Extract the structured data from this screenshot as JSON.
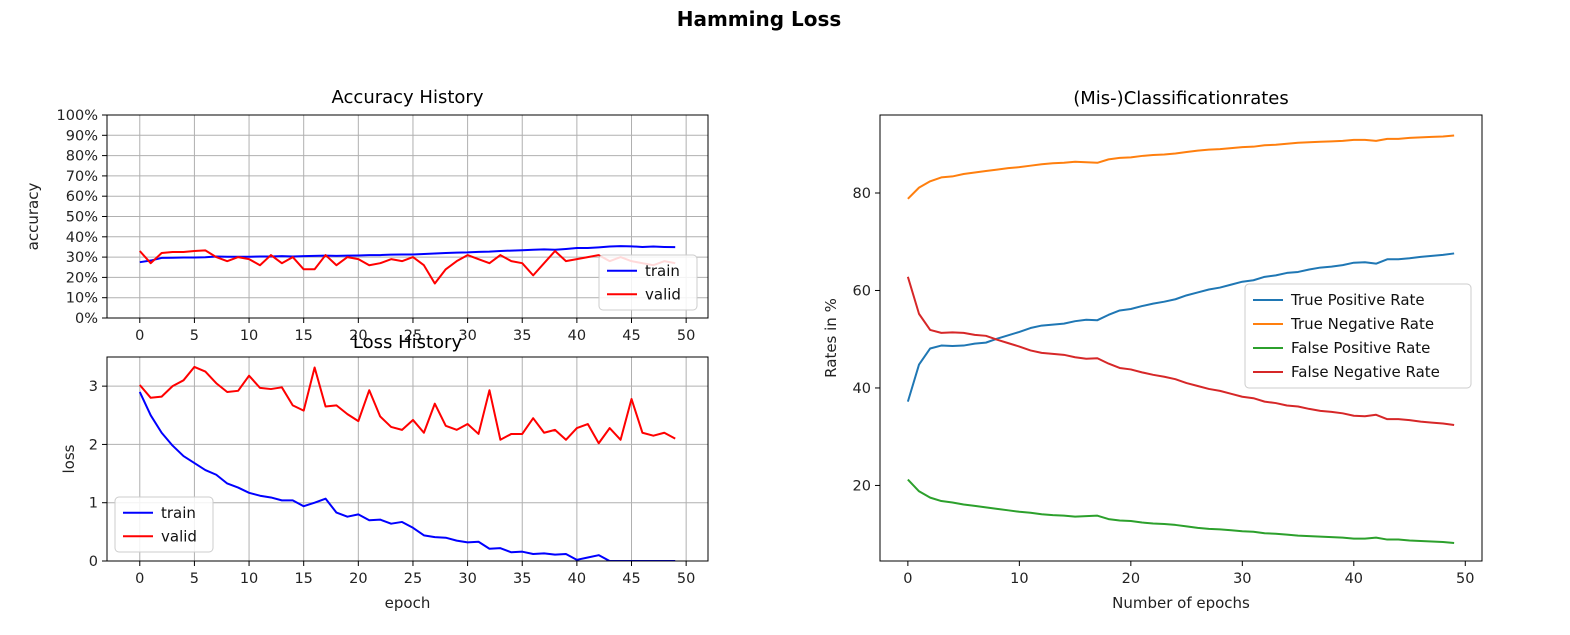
{
  "figure": {
    "title": "Hamming Loss"
  },
  "chart_data": [
    {
      "type": "line",
      "title": "Accuracy History",
      "xlabel": "",
      "ylabel": "accuracy",
      "xlim": [
        -3,
        52
      ],
      "ylim": [
        0,
        1
      ],
      "x_ticks": [
        "0",
        "5",
        "10",
        "15",
        "20",
        "25",
        "30",
        "35",
        "40",
        "45",
        "50"
      ],
      "y_ticks": [
        "0%",
        "10%",
        "20%",
        "30%",
        "40%",
        "50%",
        "60%",
        "70%",
        "80%",
        "90%",
        "100%"
      ],
      "grid": true,
      "legend": "lower-right",
      "series": [
        {
          "name": "train",
          "color": "#0000ff",
          "values": [
            0.275,
            0.283,
            0.296,
            0.297,
            0.298,
            0.298,
            0.299,
            0.303,
            0.302,
            0.302,
            0.302,
            0.303,
            0.303,
            0.305,
            0.303,
            0.305,
            0.306,
            0.307,
            0.306,
            0.307,
            0.308,
            0.31,
            0.31,
            0.312,
            0.313,
            0.313,
            0.315,
            0.318,
            0.32,
            0.322,
            0.323,
            0.326,
            0.327,
            0.33,
            0.332,
            0.334,
            0.336,
            0.338,
            0.336,
            0.34,
            0.345,
            0.345,
            0.348,
            0.352,
            0.354,
            0.353,
            0.35,
            0.352,
            0.35,
            0.349
          ]
        },
        {
          "name": "valid",
          "color": "#ff0000",
          "values": [
            0.33,
            0.27,
            0.32,
            0.325,
            0.325,
            0.33,
            0.333,
            0.3,
            0.28,
            0.3,
            0.29,
            0.26,
            0.31,
            0.27,
            0.3,
            0.24,
            0.24,
            0.31,
            0.26,
            0.3,
            0.29,
            0.26,
            0.27,
            0.29,
            0.28,
            0.3,
            0.26,
            0.17,
            0.24,
            0.28,
            0.31,
            0.29,
            0.27,
            0.31,
            0.28,
            0.27,
            0.21,
            0.27,
            0.33,
            0.28,
            0.29,
            0.3,
            0.31,
            0.28,
            0.3,
            0.28,
            0.27,
            0.26,
            0.28,
            0.27
          ]
        }
      ]
    },
    {
      "type": "line",
      "title": "Loss History",
      "xlabel": "epoch",
      "ylabel": "loss",
      "xlim": [
        -3,
        52
      ],
      "ylim": [
        0,
        3.5
      ],
      "x_ticks": [
        "0",
        "5",
        "10",
        "15",
        "20",
        "25",
        "30",
        "35",
        "40",
        "45",
        "50"
      ],
      "y_ticks": [
        "0",
        "1",
        "2",
        "3"
      ],
      "grid": true,
      "legend": "lower-left",
      "series": [
        {
          "name": "train",
          "color": "#0000ff",
          "values": [
            2.9,
            2.5,
            2.2,
            1.98,
            1.8,
            1.68,
            1.56,
            1.48,
            1.33,
            1.26,
            1.17,
            1.12,
            1.09,
            1.04,
            1.04,
            0.94,
            1.0,
            1.07,
            0.83,
            0.76,
            0.8,
            0.7,
            0.71,
            0.64,
            0.67,
            0.57,
            0.44,
            0.41,
            0.4,
            0.35,
            0.32,
            0.33,
            0.21,
            0.22,
            0.15,
            0.16,
            0.12,
            0.13,
            0.11,
            0.12,
            0.02,
            0.06,
            0.1,
            0.0,
            0.0,
            0.0,
            0.0,
            0.0,
            0.0,
            0.0
          ]
        },
        {
          "name": "valid",
          "color": "#ff0000",
          "values": [
            3.02,
            2.8,
            2.82,
            3.0,
            3.1,
            3.33,
            3.25,
            3.05,
            2.9,
            2.92,
            3.18,
            2.97,
            2.95,
            2.98,
            2.67,
            2.58,
            3.32,
            2.65,
            2.67,
            2.52,
            2.4,
            2.93,
            2.48,
            2.3,
            2.25,
            2.42,
            2.2,
            2.7,
            2.32,
            2.25,
            2.35,
            2.18,
            2.93,
            2.08,
            2.18,
            2.18,
            2.45,
            2.2,
            2.25,
            2.08,
            2.28,
            2.35,
            2.02,
            2.28,
            2.08,
            2.78,
            2.2,
            2.15,
            2.2,
            2.1
          ]
        }
      ]
    },
    {
      "type": "line",
      "title": "(Mis-)Classificationrates",
      "xlabel": "Number of epochs",
      "ylabel": "Rates in %",
      "xlim": [
        -2.5,
        51.5
      ],
      "ylim": [
        4.5,
        96
      ],
      "x_ticks": [
        "0",
        "10",
        "20",
        "30",
        "40",
        "50"
      ],
      "y_ticks": [
        "20",
        "40",
        "60",
        "80"
      ],
      "grid": false,
      "legend": "center-right",
      "series": [
        {
          "name": "True Positive Rate",
          "color": "#1f77b4",
          "values": [
            37.2,
            44.8,
            48.1,
            48.7,
            48.6,
            48.7,
            49.1,
            49.3,
            50.1,
            50.8,
            51.5,
            52.3,
            52.8,
            53.0,
            53.2,
            53.7,
            54.0,
            53.9,
            55.0,
            55.9,
            56.2,
            56.8,
            57.3,
            57.7,
            58.2,
            59.0,
            59.6,
            60.2,
            60.6,
            61.2,
            61.8,
            62.1,
            62.8,
            63.1,
            63.6,
            63.8,
            64.3,
            64.7,
            64.9,
            65.2,
            65.7,
            65.8,
            65.5,
            66.4,
            66.4,
            66.6,
            66.9,
            67.1,
            67.3,
            67.6
          ]
        },
        {
          "name": "True Negative Rate",
          "color": "#ff7f0e",
          "values": [
            78.8,
            81.1,
            82.4,
            83.2,
            83.4,
            83.9,
            84.2,
            84.5,
            84.8,
            85.1,
            85.3,
            85.6,
            85.9,
            86.1,
            86.2,
            86.4,
            86.3,
            86.2,
            86.9,
            87.2,
            87.3,
            87.6,
            87.8,
            87.9,
            88.1,
            88.4,
            88.7,
            88.9,
            89.0,
            89.2,
            89.4,
            89.5,
            89.8,
            89.9,
            90.1,
            90.3,
            90.4,
            90.5,
            90.6,
            90.7,
            90.9,
            90.9,
            90.7,
            91.1,
            91.1,
            91.3,
            91.4,
            91.5,
            91.6,
            91.8
          ]
        },
        {
          "name": "False Positive Rate",
          "color": "#2ca02c",
          "values": [
            21.2,
            18.8,
            17.5,
            16.8,
            16.5,
            16.1,
            15.8,
            15.5,
            15.2,
            14.9,
            14.6,
            14.4,
            14.1,
            13.9,
            13.8,
            13.6,
            13.7,
            13.8,
            13.1,
            12.8,
            12.7,
            12.4,
            12.2,
            12.1,
            11.9,
            11.6,
            11.3,
            11.1,
            11.0,
            10.8,
            10.6,
            10.5,
            10.2,
            10.1,
            9.9,
            9.7,
            9.6,
            9.5,
            9.4,
            9.3,
            9.1,
            9.1,
            9.3,
            8.9,
            8.9,
            8.7,
            8.6,
            8.5,
            8.4,
            8.2
          ]
        },
        {
          "name": "False Negative Rate",
          "color": "#d62728",
          "values": [
            62.8,
            55.2,
            51.9,
            51.3,
            51.4,
            51.3,
            50.9,
            50.7,
            49.9,
            49.2,
            48.5,
            47.7,
            47.2,
            47.0,
            46.8,
            46.3,
            46.0,
            46.1,
            45.0,
            44.1,
            43.8,
            43.2,
            42.7,
            42.3,
            41.8,
            41.0,
            40.4,
            39.8,
            39.4,
            38.8,
            38.2,
            37.9,
            37.2,
            36.9,
            36.4,
            36.2,
            35.7,
            35.3,
            35.1,
            34.8,
            34.3,
            34.2,
            34.5,
            33.6,
            33.6,
            33.4,
            33.1,
            32.9,
            32.7,
            32.4
          ]
        }
      ]
    }
  ]
}
